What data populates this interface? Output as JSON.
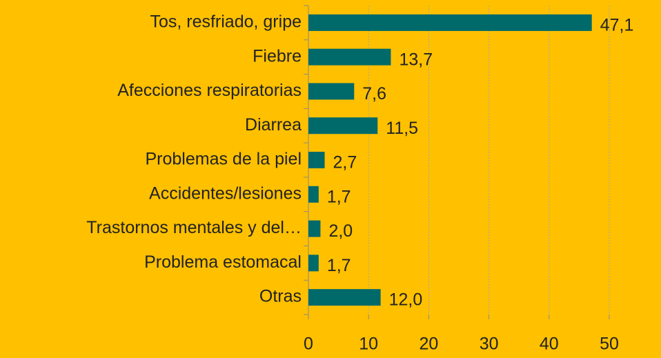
{
  "chart_data": {
    "type": "bar",
    "orientation": "horizontal",
    "categories": [
      "Tos, resfriado, gripe",
      "Fiebre",
      "Afecciones respiratorias",
      "Diarrea",
      "Problemas de la piel",
      "Accidentes/lesiones",
      "Trastornos mentales y del…",
      "Problema estomacal",
      "Otras"
    ],
    "values": [
      47.1,
      13.7,
      7.6,
      11.5,
      2.7,
      1.7,
      2.0,
      1.7,
      12.0
    ],
    "value_labels": [
      "47,1",
      "13,7",
      "7,6",
      "11,5",
      "2,7",
      "1,7",
      "2,0",
      "1,7",
      "12,0"
    ],
    "color": "#006a6a",
    "xlim": [
      0,
      50
    ],
    "xticks": [
      0,
      10,
      20,
      30,
      40,
      50
    ],
    "grid": true
  }
}
